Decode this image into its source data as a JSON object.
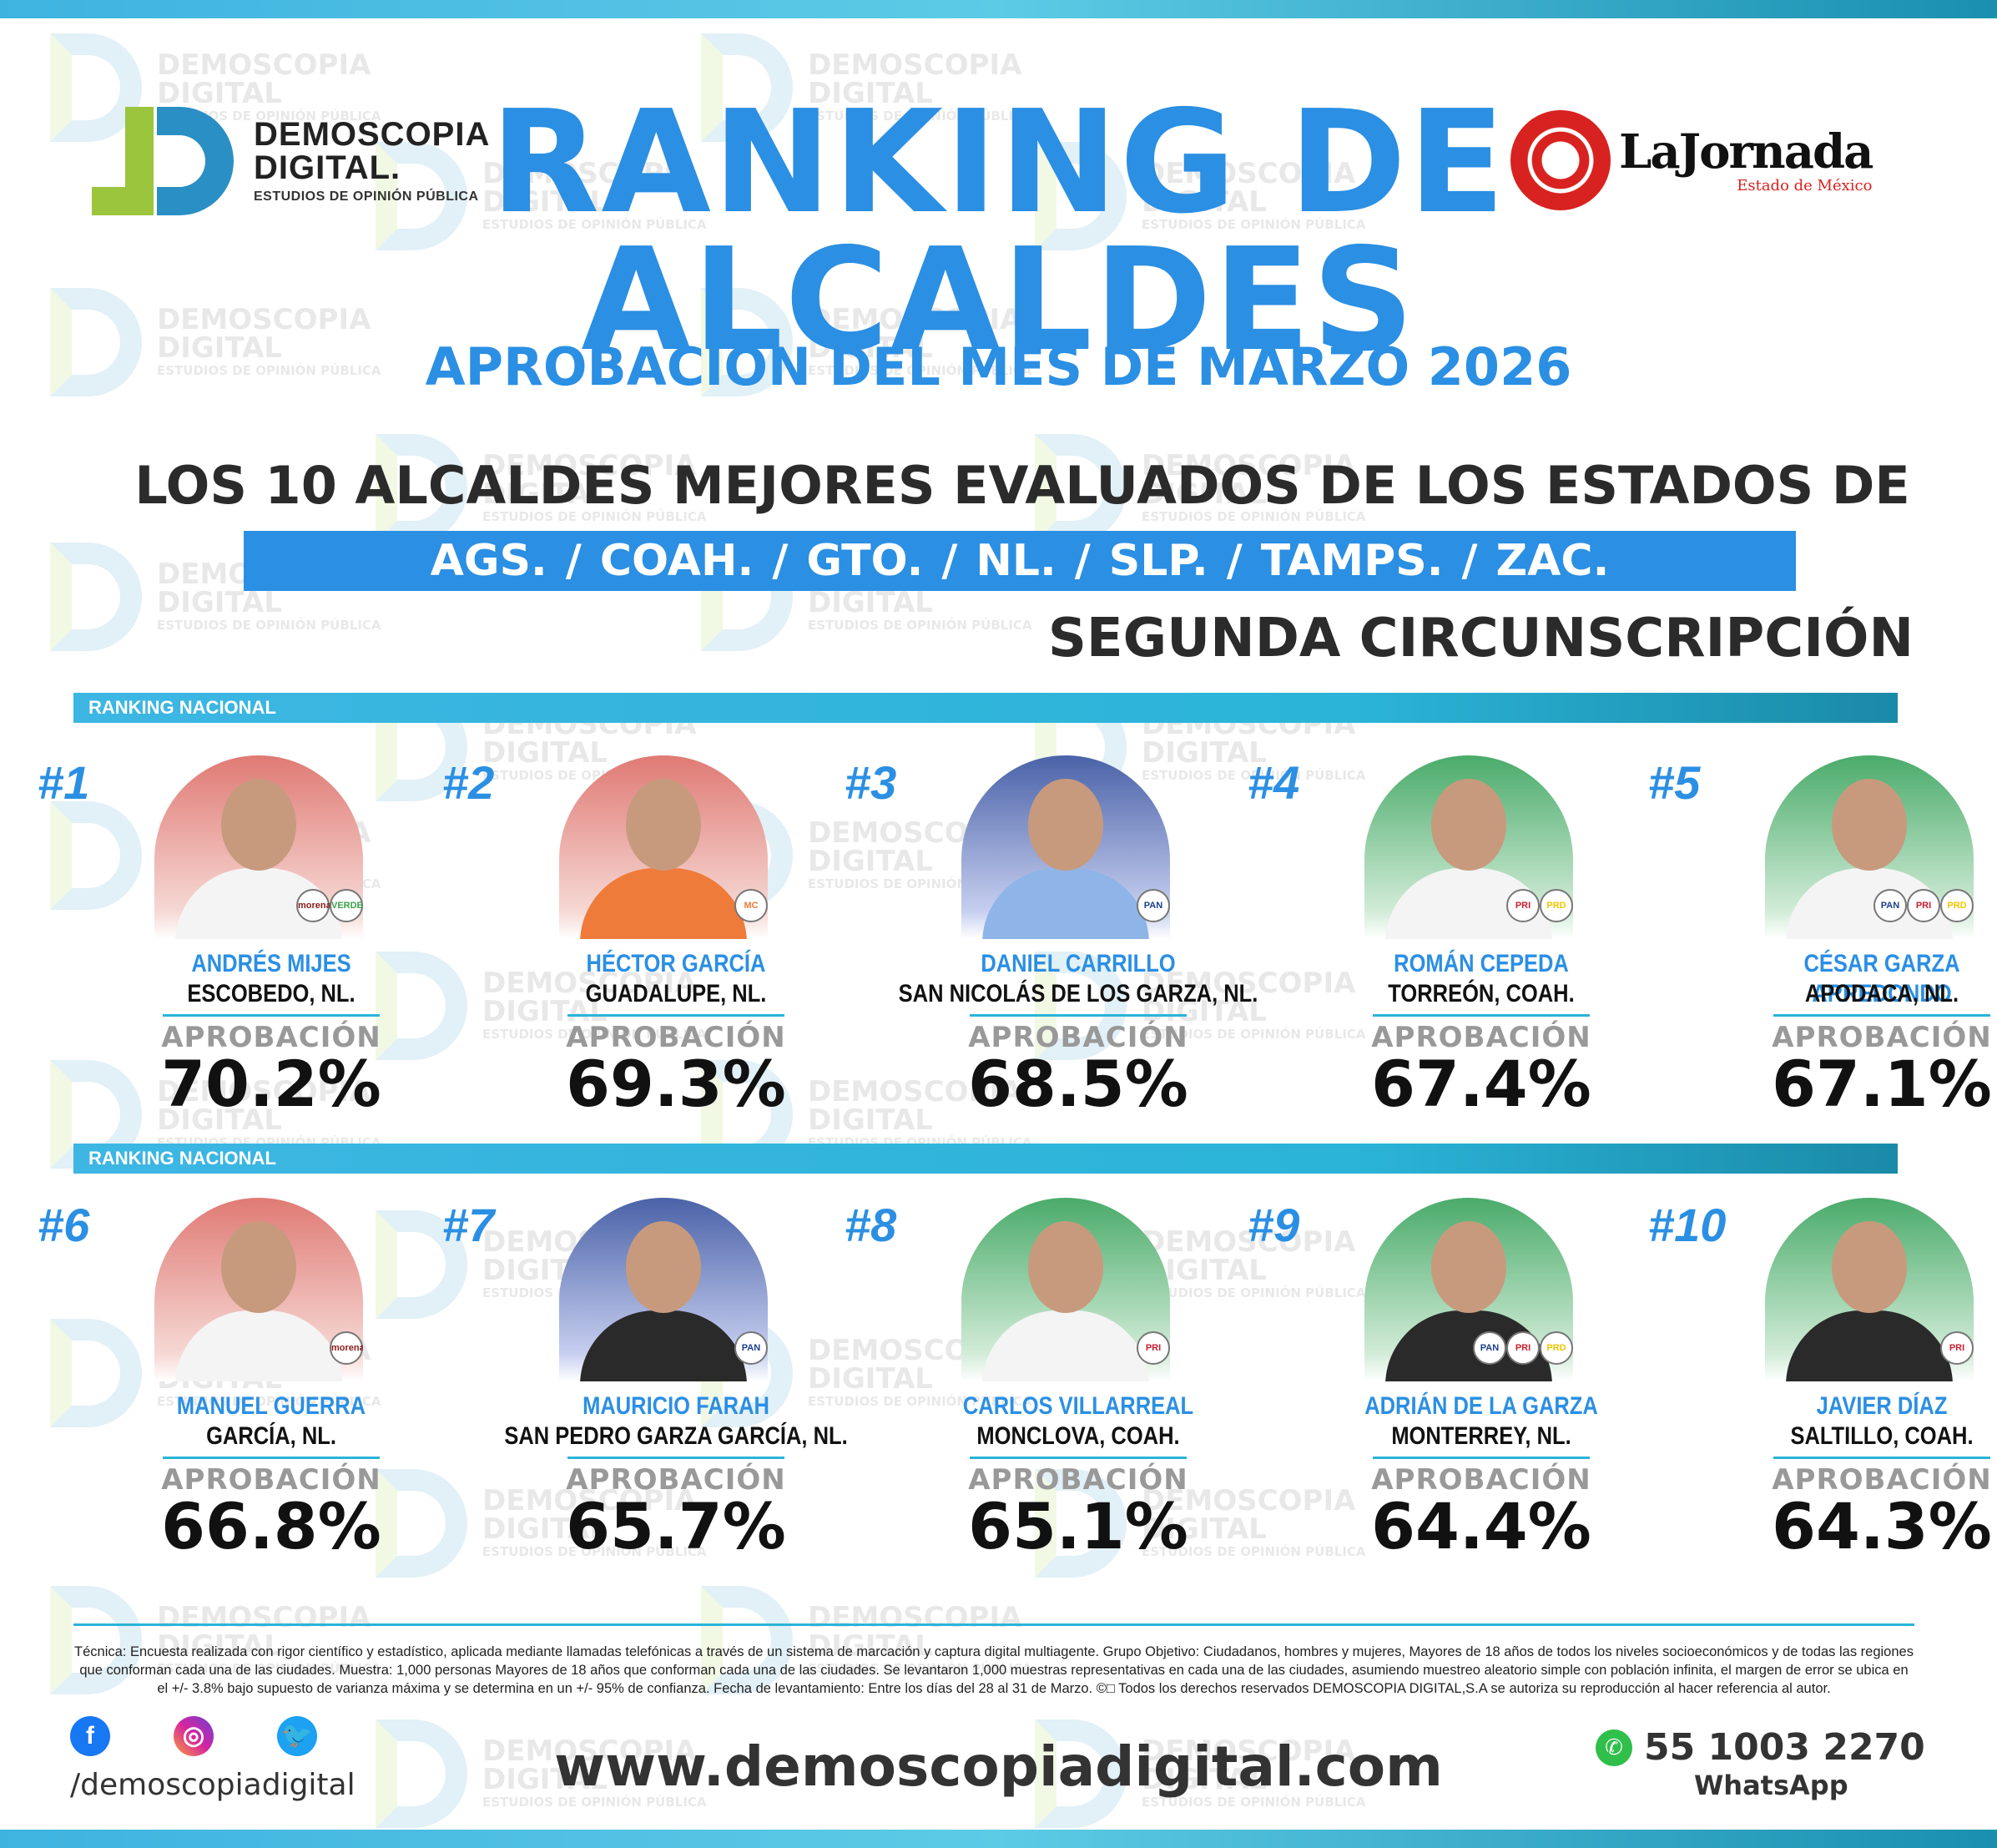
{
  "brand": {
    "line1": "DEMOSCOPIA",
    "line2": "DIGITAL.",
    "line3": "ESTUDIOS DE OPINIÓN PÚBLICA"
  },
  "partner": {
    "name": "LaJornada",
    "region": "Estado de México"
  },
  "watermark": {
    "line1": "DEMOSCOPIA",
    "line2": "DIGITAL",
    "line3": "ESTUDIOS DE OPINIÓN PÚBLICA"
  },
  "header": {
    "title_line1": "RANKING DE",
    "title_line2": "ALCALDES",
    "subtitle": "APROBACIÓN DEL MES DE MARZO 2026",
    "heading": "LOS 10 ALCALDES MEJORES EVALUADOS DE LOS ESTADOS DE",
    "states": [
      "AGS.",
      "COAH.",
      "GTO.",
      "NL.",
      "SLP.",
      "TAMPS.",
      "ZAC."
    ],
    "separator": "/",
    "circumscription": "SEGUNDA CIRCUNSCRIPCIÓN"
  },
  "section_label": "RANKING NACIONAL",
  "approval_label": "APROBACIÓN",
  "mayors": [
    {
      "rank": "#1",
      "name": "ANDRÉS MIJES",
      "city": "ESCOBEDO, NL.",
      "approval": "70.2%",
      "bg": "red",
      "parties": [
        "morena",
        "VERDE"
      ]
    },
    {
      "rank": "#2",
      "name": "HÉCTOR GARCÍA",
      "city": "GUADALUPE, NL.",
      "approval": "69.3%",
      "bg": "red",
      "parties": [
        "MC"
      ]
    },
    {
      "rank": "#3",
      "name": "DANIEL CARRILLO",
      "city": "SAN NICOLÁS DE LOS GARZA, NL.",
      "approval": "68.5%",
      "bg": "blue",
      "parties": [
        "PAN"
      ]
    },
    {
      "rank": "#4",
      "name": "ROMÁN CEPEDA",
      "city": "TORREÓN, COAH.",
      "approval": "67.4%",
      "bg": "green",
      "parties": [
        "PRI",
        "PRD"
      ]
    },
    {
      "rank": "#5",
      "name": "CÉSAR GARZA ARREDONDO",
      "city": "APODACA, NL.",
      "approval": "67.1%",
      "bg": "green",
      "parties": [
        "PAN",
        "PRI",
        "PRD"
      ]
    },
    {
      "rank": "#6",
      "name": "MANUEL GUERRA",
      "city": "GARCÍA, NL.",
      "approval": "66.8%",
      "bg": "red",
      "parties": [
        "morena"
      ]
    },
    {
      "rank": "#7",
      "name": "MAURICIO FARAH",
      "city": "SAN PEDRO GARZA GARCÍA, NL.",
      "approval": "65.7%",
      "bg": "blue",
      "parties": [
        "PAN"
      ]
    },
    {
      "rank": "#8",
      "name": "CARLOS VILLARREAL",
      "city": "MONCLOVA, COAH.",
      "approval": "65.1%",
      "bg": "green",
      "parties": [
        "PRI"
      ]
    },
    {
      "rank": "#9",
      "name": "ADRIÁN DE LA GARZA",
      "city": "MONTERREY, NL.",
      "approval": "64.4%",
      "bg": "green",
      "parties": [
        "PAN",
        "PRI",
        "PRD"
      ]
    },
    {
      "rank": "#10",
      "name": "JAVIER DÍAZ",
      "city": "SALTILLO, COAH.",
      "approval": "64.3%",
      "bg": "green",
      "parties": [
        "PRI"
      ]
    }
  ],
  "footer": {
    "technical_note": "Técnica: Encuesta realizada con rigor científico y estadístico, aplicada mediante llamadas telefónicas a través de un sistema de marcación y captura digital multiagente. Grupo Objetivo: Ciudadanos, hombres y mujeres, Mayores de 18 años de todos los niveles socioeconómicos y de todas las regiones que conforman cada una de las ciudades. Muestra: 1,000 personas Mayores de 18 años que conforman cada una de las ciudades. Se levantaron 1,000 muestras representativas en cada una de las ciudades, asumiendo muestreo aleatorio simple con población infinita, el margen de error se ubica en el +/- 3.8% bajo supuesto de varianza máxima y se determina en un +/- 95% de confianza. Fecha de levantamiento: Entre los días del 28 al 31 de Marzo. ©□ Todos los derechos reservados DEMOSCOPIA DIGITAL,S.A se autoriza su reproducción al hacer referencia al autor.",
    "social_icons": [
      "facebook-icon",
      "instagram-icon",
      "twitter-icon"
    ],
    "handle": "/demoscopiadigital",
    "website": "www.demoscopiadigital.com",
    "phone": "55 1003 2270",
    "phone_label": "WhatsApp"
  },
  "colors": {
    "accent_blue": "#2b8fe3",
    "cyan_bar": "#2bb4d8",
    "brand_green": "#9bc53d",
    "jornada_red": "#d8221f"
  }
}
